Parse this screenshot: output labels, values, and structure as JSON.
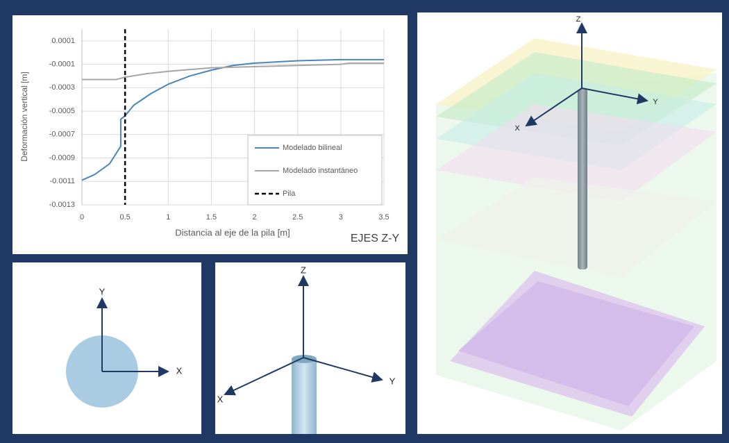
{
  "chart_data": {
    "type": "line",
    "y_label": "Deformación vertical [m]",
    "x_label": "Distancia al eje de la pila [m]",
    "annotation": "EJES Z-Y",
    "xlim": [
      0,
      3.5
    ],
    "xticks": [
      0,
      0.5,
      1,
      1.5,
      2,
      2.5,
      3,
      3.5
    ],
    "ylim": [
      -0.0013,
      0.0002
    ],
    "yticks": [
      0.0001,
      -0.0001,
      -0.0003,
      -0.0005,
      -0.0007,
      -0.0009,
      -0.0011,
      -0.0013
    ],
    "grid": true,
    "legend": "lower right",
    "series": [
      {
        "name": "Modelado bilineal",
        "color": "#4a86b8",
        "dashed": false,
        "x": [
          0,
          0.15,
          0.32,
          0.45,
          0.45,
          0.5,
          0.6,
          0.8,
          1,
          1.25,
          1.5,
          1.75,
          2,
          2.5,
          3,
          3.5
        ],
        "values": [
          -0.00109,
          -0.00104,
          -0.00095,
          -0.0008,
          -0.00057,
          -0.00054,
          -0.00045,
          -0.00035,
          -0.00027,
          -0.0002,
          -0.00015,
          -0.00011,
          -9e-05,
          -7e-05,
          -6e-05,
          -6e-05
        ]
      },
      {
        "name": "Modelado instantáneo",
        "color": "#a6a6a6",
        "dashed": false,
        "x": [
          0,
          0.4,
          0.5,
          0.75,
          1,
          1.5,
          2,
          2.5,
          3,
          3.1,
          3.5
        ],
        "values": [
          -0.00023,
          -0.00023,
          -0.00021,
          -0.00018,
          -0.00016,
          -0.00013,
          -0.00012,
          -0.00011,
          -0.0001,
          -9e-05,
          -9e-05
        ]
      },
      {
        "name": "Pila",
        "color": "#000000",
        "dashed": true,
        "x": [
          0.5,
          0.5
        ],
        "values": [
          0.0002,
          -0.0013
        ]
      }
    ]
  },
  "diagrams": {
    "top_view": {
      "y_label": "Y",
      "x_label": "X"
    },
    "pile_view": {
      "z_label": "Z",
      "y_label": "Y",
      "x_label": "X"
    },
    "model_3d": {
      "z_label": "Z",
      "y_label": "Y",
      "x_label": "X"
    }
  }
}
